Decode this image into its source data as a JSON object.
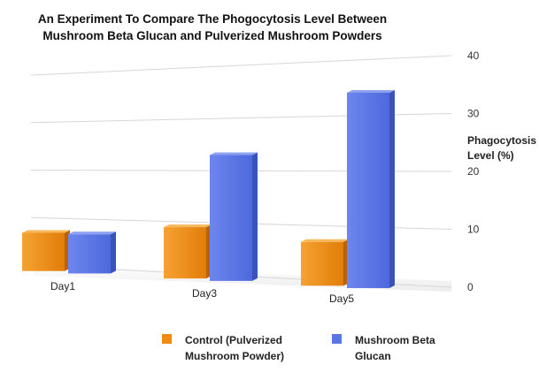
{
  "chart_data": {
    "type": "bar",
    "title": "An Experiment To Compare The Phogocytosis Level Between Mushroom Beta Glucan and Pulverized Mushroom Powders",
    "title_lines": [
      "An Experiment To Compare The Phogocytosis Level Between",
      "Mushroom Beta Glucan and Pulverized Mushroom Powders"
    ],
    "ylabel": "Phagocytosis Level (%)",
    "ylabel_lines": [
      "Phagocytosis",
      "Level (%)"
    ],
    "xlabel": "",
    "categories": [
      "Day1",
      "Day3",
      "Day5"
    ],
    "yticks": [
      "40",
      "30",
      "20",
      "10",
      "0"
    ],
    "ylim": [
      0,
      40
    ],
    "grid": true,
    "legend_position": "bottom",
    "series": [
      {
        "name": "Control (Pulverized Mushroom Powder)",
        "legend_lines": [
          "Control (Pulverized",
          "Mushroom Powder)"
        ],
        "color": "#f08a12",
        "values": [
          8,
          10,
          8
        ]
      },
      {
        "name": "Mushroom Beta Glucan",
        "legend_lines": [
          "Mushroom Beta",
          "Glucan"
        ],
        "color": "#5a76e6",
        "values": [
          8,
          24,
          35
        ]
      }
    ]
  }
}
